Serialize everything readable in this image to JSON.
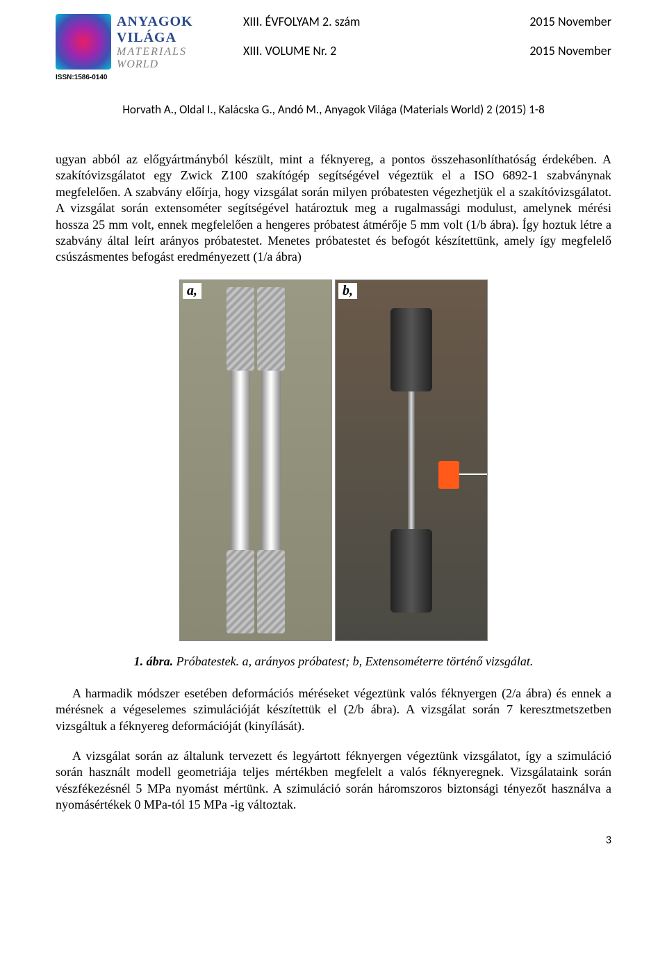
{
  "header": {
    "brand_line1": "ANYAGOK",
    "brand_line2": "VILÁGA",
    "brand_line3": "MATERIALS",
    "brand_line4": "WORLD",
    "issn": "ISSN:1586-0140",
    "vol_hu": "XIII. ÉVFOLYAM 2. szám",
    "date_hu": "2015 November",
    "vol_en": "XIII. VOLUME Nr. 2",
    "date_en": "2015 November"
  },
  "citation": "Horvath A., Oldal I., Kalácska G., Andó M., Anyagok Világa (Materials World) 2 (2015) 1-8",
  "paragraph1": "ugyan abból az előgyártmányból készült, mint a féknyereg, a pontos összehasonlíthatóság érdekében. A szakítóvizsgálatot egy Zwick Z100 szakítógép segítségével végeztük el a ISO 6892-1 szabványnak megfelelően. A szabvány előírja, hogy vizsgálat során milyen próbatesten végezhetjük el a szakítóvizsgálatot. A vizsgálat során extensométer segítségével határoztuk meg a rugalmassági modulust, amelynek mérési hossza 25 mm volt, ennek megfelelően a hengeres próbatest átmérője 5 mm volt (1/b ábra). Így hoztuk létre a szabvány által leírt arányos próbatestet. Menetes próbatestet és befogót készítettünk, amely így megfelelő csúszásmentes befogást eredményezett (1/a ábra)",
  "figure": {
    "panel_a_label": "a,",
    "panel_b_label": "b,",
    "caption_bold": "1. ábra.",
    "caption_rest": " Próbatestek. a, arányos próbatest; b, Extensométerre történő vizsgálat."
  },
  "paragraph2": "A harmadik módszer esetében deformációs méréseket végeztünk valós féknyergen (2/a ábra) és ennek a mérésnek a végeselemes szimulációját készítettük el (2/b ábra). A vizsgálat során 7 keresztmetszetben vizsgáltuk a féknyereg deformációját (kinyílását).",
  "paragraph3": "A vizsgálat során az általunk tervezett és legyártott féknyergen végeztünk vizsgálatot, így a szimuláció során használt modell geometriája teljes mértékben megfelelt a valós féknyeregnek. Vizsgálataink során vészfékezésnél 5 MPa nyomást mértünk. A szimuláció során háromszoros biztonsági tényezőt használva a nyomásértékek 0 MPa-tól 15 MPa -ig változtak.",
  "page_number": "3",
  "colors": {
    "text": "#000000",
    "brand": "#2a4a8a",
    "brand_sub": "#808080",
    "background": "#ffffff"
  },
  "typography": {
    "body_font": "Times New Roman",
    "header_font": "Calibri",
    "body_size_pt": 14,
    "header_size_pt": 14,
    "caption_style": "italic"
  }
}
